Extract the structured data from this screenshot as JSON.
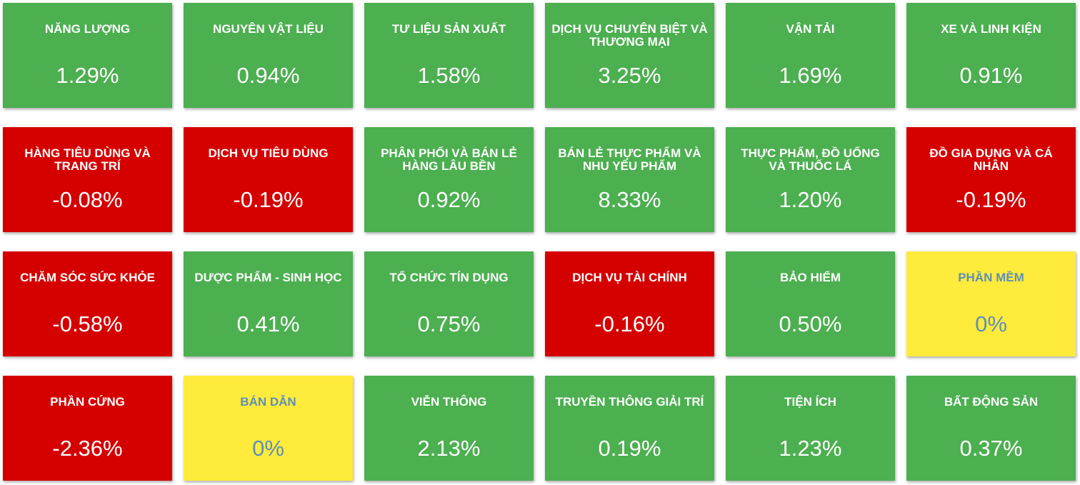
{
  "colors": {
    "up": "#4caf50",
    "down": "#d50000",
    "flat": "#ffeb3b",
    "flat_text": "#5d8fb8",
    "text": "#ffffff"
  },
  "sectors": [
    {
      "name": "NĂNG LƯỢNG",
      "change": "1.29%",
      "trend": "up"
    },
    {
      "name": "NGUYÊN VẬT LIỆU",
      "change": "0.94%",
      "trend": "up"
    },
    {
      "name": "TƯ LIỆU SẢN XUẤT",
      "change": "1.58%",
      "trend": "up"
    },
    {
      "name": "DỊCH VỤ CHUYÊN BIỆT VÀ THƯƠNG MẠI",
      "change": "3.25%",
      "trend": "up"
    },
    {
      "name": "VẬN TẢI",
      "change": "1.69%",
      "trend": "up"
    },
    {
      "name": "XE VÀ LINH KIỆN",
      "change": "0.91%",
      "trend": "up"
    },
    {
      "name": "HÀNG TIÊU DÙNG VÀ TRANG TRÍ",
      "change": "-0.08%",
      "trend": "down"
    },
    {
      "name": "DỊCH VỤ TIÊU DÙNG",
      "change": "-0.19%",
      "trend": "down"
    },
    {
      "name": "PHÂN PHỐI VÀ BÁN LẺ HÀNG LÂU BỀN",
      "change": "0.92%",
      "trend": "up"
    },
    {
      "name": "BÁN LẺ THỰC PHẨM VÀ NHU YẾU PHẨM",
      "change": "8.33%",
      "trend": "up"
    },
    {
      "name": "THỰC PHẨM, ĐỒ UỐNG VÀ THUỐC LÁ",
      "change": "1.20%",
      "trend": "up"
    },
    {
      "name": "ĐỒ GIA DỤNG VÀ CÁ NHÂN",
      "change": "-0.19%",
      "trend": "down"
    },
    {
      "name": "CHĂM SÓC SỨC KHỎE",
      "change": "-0.58%",
      "trend": "down"
    },
    {
      "name": "DƯỢC PHẨM - SINH HỌC",
      "change": "0.41%",
      "trend": "up"
    },
    {
      "name": "TỔ CHỨC TÍN DỤNG",
      "change": "0.75%",
      "trend": "up"
    },
    {
      "name": "DỊCH VỤ TÀI CHÍNH",
      "change": "-0.16%",
      "trend": "down"
    },
    {
      "name": "BẢO HIỂM",
      "change": "0.50%",
      "trend": "up"
    },
    {
      "name": "PHẦN MỀM",
      "change": "0%",
      "trend": "flat"
    },
    {
      "name": "PHẦN CỨNG",
      "change": "-2.36%",
      "trend": "down"
    },
    {
      "name": "BÁN DẪN",
      "change": "0%",
      "trend": "flat"
    },
    {
      "name": "VIỄN THÔNG",
      "change": "2.13%",
      "trend": "up"
    },
    {
      "name": "TRUYỀN THÔNG GIẢI TRÍ",
      "change": "0.19%",
      "trend": "up"
    },
    {
      "name": "TIỆN ÍCH",
      "change": "1.23%",
      "trend": "up"
    },
    {
      "name": "BẤT ĐỘNG SẢN",
      "change": "0.37%",
      "trend": "up"
    }
  ]
}
